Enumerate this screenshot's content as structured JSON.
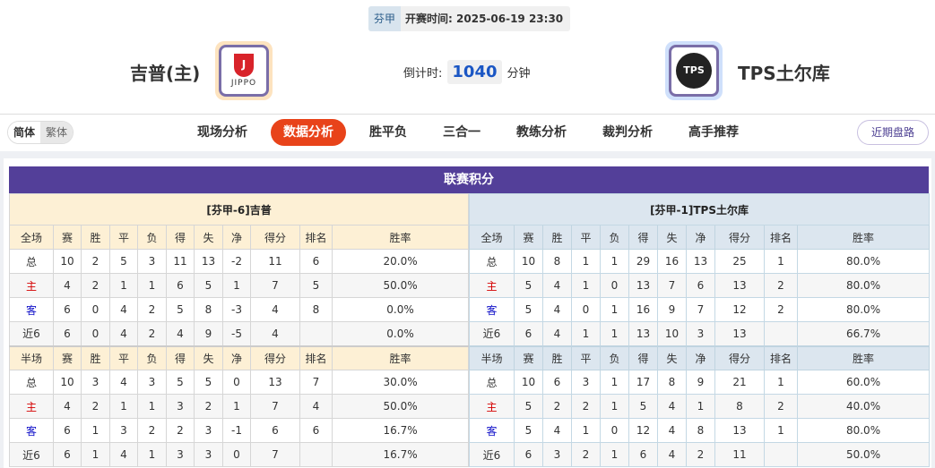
{
  "header": {
    "league": "芬甲",
    "match_time_label": "开赛时间:",
    "match_time": "2025-06-19 23:30",
    "home_team": "吉普(主)",
    "away_team": "TPS土尔库",
    "home_logo_text": "JIPPO",
    "away_logo_text": "TPS",
    "countdown_label": "倒计时:",
    "countdown_value": "1040",
    "countdown_unit": "分钟"
  },
  "lang": {
    "simplified": "简体",
    "traditional": "繁体"
  },
  "nav": {
    "items": [
      "现场分析",
      "数据分析",
      "胜平负",
      "三合一",
      "教练分析",
      "裁判分析",
      "高手推荐"
    ],
    "active": "数据分析",
    "recent": "近期盘路"
  },
  "colors": {
    "accent": "#e8431a",
    "panel_header": "#533f99",
    "home_bg": "#fdf0d5",
    "away_bg": "#dce6ef"
  },
  "standings": {
    "title": "联赛积分",
    "columns_full": [
      "全场",
      "赛",
      "胜",
      "平",
      "负",
      "得",
      "失",
      "净",
      "得分",
      "排名",
      "胜率"
    ],
    "columns_half": [
      "半场",
      "赛",
      "胜",
      "平",
      "负",
      "得",
      "失",
      "净",
      "得分",
      "排名",
      "胜率"
    ],
    "home": {
      "title": "[芬甲-6]吉普",
      "full": [
        [
          "总",
          "10",
          "2",
          "5",
          "3",
          "11",
          "13",
          "-2",
          "11",
          "6",
          "20.0%"
        ],
        [
          "主",
          "4",
          "2",
          "1",
          "1",
          "6",
          "5",
          "1",
          "7",
          "5",
          "50.0%"
        ],
        [
          "客",
          "6",
          "0",
          "4",
          "2",
          "5",
          "8",
          "-3",
          "4",
          "8",
          "0.0%"
        ],
        [
          "近6",
          "6",
          "0",
          "4",
          "2",
          "4",
          "9",
          "-5",
          "4",
          "",
          "0.0%"
        ]
      ],
      "half": [
        [
          "总",
          "10",
          "3",
          "4",
          "3",
          "5",
          "5",
          "0",
          "13",
          "7",
          "30.0%"
        ],
        [
          "主",
          "4",
          "2",
          "1",
          "1",
          "3",
          "2",
          "1",
          "7",
          "4",
          "50.0%"
        ],
        [
          "客",
          "6",
          "1",
          "3",
          "2",
          "2",
          "3",
          "-1",
          "6",
          "6",
          "16.7%"
        ],
        [
          "近6",
          "6",
          "1",
          "4",
          "1",
          "3",
          "3",
          "0",
          "7",
          "",
          "16.7%"
        ]
      ]
    },
    "away": {
      "title": "[芬甲-1]TPS土尔库",
      "full": [
        [
          "总",
          "10",
          "8",
          "1",
          "1",
          "29",
          "16",
          "13",
          "25",
          "1",
          "80.0%"
        ],
        [
          "主",
          "5",
          "4",
          "1",
          "0",
          "13",
          "7",
          "6",
          "13",
          "2",
          "80.0%"
        ],
        [
          "客",
          "5",
          "4",
          "0",
          "1",
          "16",
          "9",
          "7",
          "12",
          "2",
          "80.0%"
        ],
        [
          "近6",
          "6",
          "4",
          "1",
          "1",
          "13",
          "10",
          "3",
          "13",
          "",
          "66.7%"
        ]
      ],
      "half": [
        [
          "总",
          "10",
          "6",
          "3",
          "1",
          "17",
          "8",
          "9",
          "21",
          "1",
          "60.0%"
        ],
        [
          "主",
          "5",
          "2",
          "2",
          "1",
          "5",
          "4",
          "1",
          "8",
          "2",
          "40.0%"
        ],
        [
          "客",
          "5",
          "4",
          "1",
          "0",
          "12",
          "4",
          "8",
          "13",
          "1",
          "80.0%"
        ],
        [
          "近6",
          "6",
          "3",
          "2",
          "1",
          "6",
          "4",
          "2",
          "11",
          "",
          "50.0%"
        ]
      ]
    }
  }
}
